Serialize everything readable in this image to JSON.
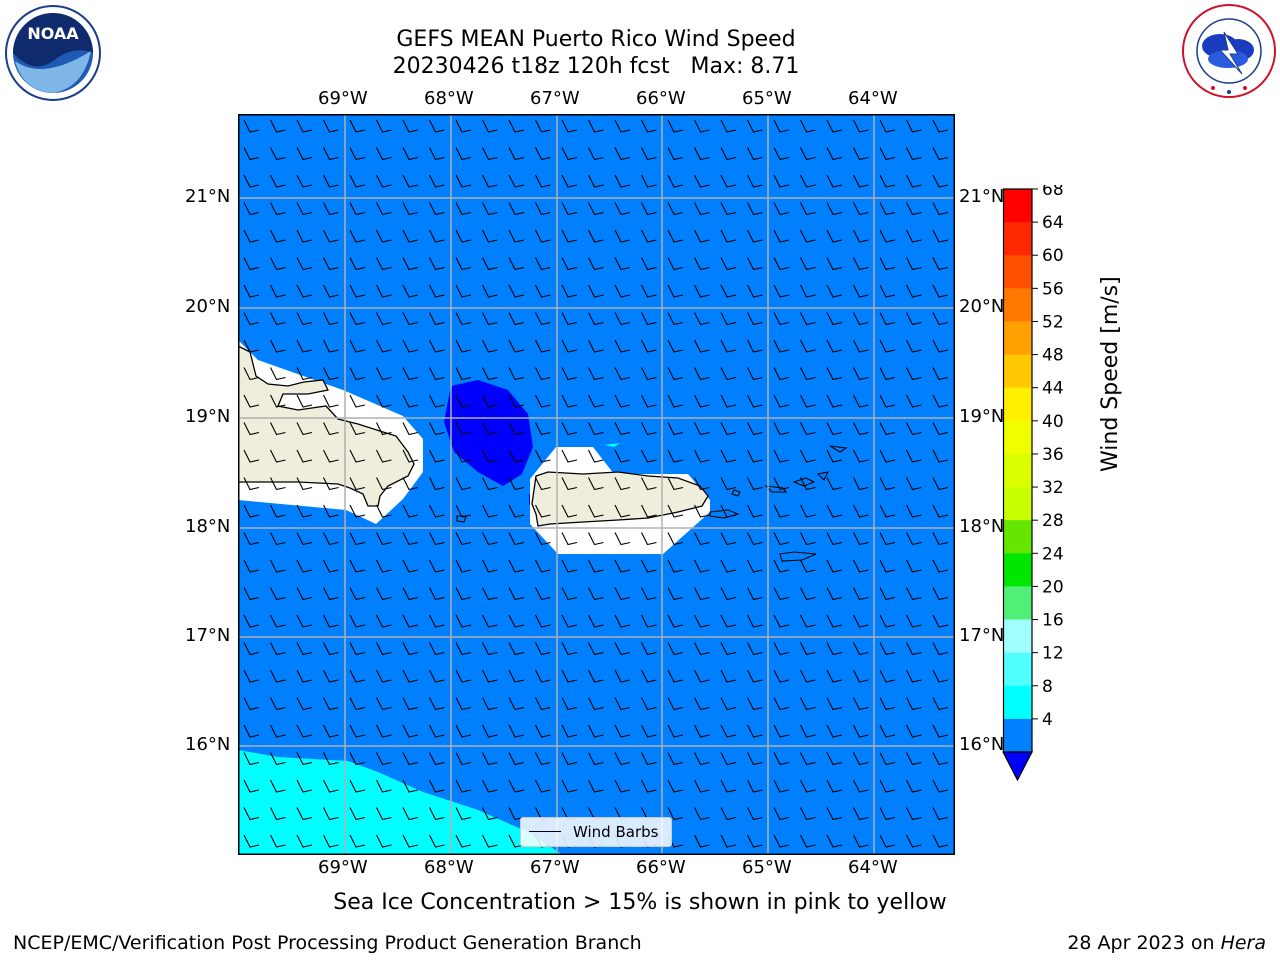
{
  "title": {
    "line1": "GEFS MEAN Puerto Rico Wind Speed",
    "line2": "20230426 t18z 120h fcst   Max: 8.71"
  },
  "logos": {
    "left_icon": "noaa-logo",
    "left_text": "NOAA",
    "right_icon": "national-weather-service-logo",
    "right_ring_text": "NATIONAL WEATHER SERVICE"
  },
  "map": {
    "lon_labels": [
      "69°W",
      "68°W",
      "67°W",
      "66°W",
      "65°W",
      "64°W"
    ],
    "lat_labels": [
      "21°N",
      "20°N",
      "19°N",
      "18°N",
      "17°N",
      "16°N"
    ],
    "lon_range": [
      -70.0,
      -63.25
    ],
    "lat_range": [
      15.0,
      21.75
    ],
    "ocean_color": "#0080ff",
    "land_color": "#efeddc",
    "legend_label": "Wind Barbs"
  },
  "colorbar": {
    "label": "Wind Speed [m/s]",
    "ticks": [
      "68",
      "64",
      "60",
      "56",
      "52",
      "48",
      "44",
      "40",
      "36",
      "32",
      "28",
      "24",
      "20",
      "16",
      "12",
      "8",
      "4"
    ],
    "colors": [
      "#ff0000",
      "#ff2800",
      "#ff5000",
      "#ff7800",
      "#ffa000",
      "#ffc800",
      "#fff000",
      "#f0ff00",
      "#dcff00",
      "#c8ff00",
      "#64e600",
      "#00e600",
      "#50f078",
      "#a0ffff",
      "#50ffff",
      "#00ffff",
      "#0080ff"
    ],
    "extend_color": "#0000ff"
  },
  "note": "Sea Ice Concentration > 15% is shown in pink to yellow",
  "footer": {
    "left": "NCEP/EMC/Verification Post Processing Product Generation Branch",
    "date": "28 Apr 2023 on ",
    "machine": "Hera"
  }
}
